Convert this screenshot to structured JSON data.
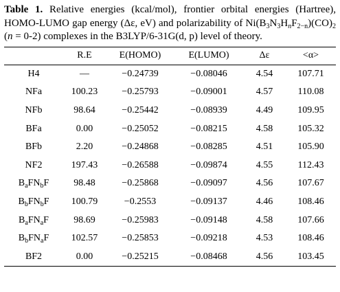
{
  "caption": {
    "label": "Table 1.",
    "text_1": " Relative energies (kcal/mol), frontier orbital energies (Hartree), HOMO-LUMO gap energy (Δε, eV) and polarizability of Ni(B",
    "sub_1": "3",
    "text_2": "N",
    "sub_2": "3",
    "text_3": "H",
    "sub_3": "n",
    "text_4": "F",
    "sub_4": "2−n",
    "text_5": ")(CO)",
    "sub_5": "2",
    "text_6": " (",
    "n_var": "n",
    "text_7": " = 0-2) complexes in the B3LYP/6-31G(d, p) level of theory."
  },
  "table": {
    "headers": [
      "",
      "R.E",
      "E(HOMO)",
      "E(LUMO)",
      "Δε",
      "<α>"
    ],
    "rows": [
      {
        "name": [
          {
            "t": "H4"
          }
        ],
        "re": "—",
        "homo": "−0.24739",
        "lumo": "−0.08046",
        "gap": "4.54",
        "alpha": "107.71"
      },
      {
        "name": [
          {
            "t": "NFa"
          }
        ],
        "re": "100.23",
        "homo": "−0.25793",
        "lumo": "−0.09001",
        "gap": "4.57",
        "alpha": "110.08"
      },
      {
        "name": [
          {
            "t": "NFb"
          }
        ],
        "re": "98.64",
        "homo": "−0.25442",
        "lumo": "−0.08939",
        "gap": "4.49",
        "alpha": "109.95"
      },
      {
        "name": [
          {
            "t": "BFa"
          }
        ],
        "re": "0.00",
        "homo": "−0.25052",
        "lumo": "−0.08215",
        "gap": "4.58",
        "alpha": "105.32"
      },
      {
        "name": [
          {
            "t": "BFb"
          }
        ],
        "re": "2.20",
        "homo": "−0.24868",
        "lumo": "−0.08285",
        "gap": "4.51",
        "alpha": "105.90"
      },
      {
        "name": [
          {
            "t": "NF2"
          }
        ],
        "re": "197.43",
        "homo": "−0.26588",
        "lumo": "−0.09874",
        "gap": "4.55",
        "alpha": "112.43"
      },
      {
        "name": [
          {
            "t": "B"
          },
          {
            "s": "a"
          },
          {
            "t": "FN"
          },
          {
            "s": "b"
          },
          {
            "t": "F"
          }
        ],
        "re": "98.48",
        "homo": "−0.25868",
        "lumo": "−0.09097",
        "gap": "4.56",
        "alpha": "107.67"
      },
      {
        "name": [
          {
            "t": "B"
          },
          {
            "s": "b"
          },
          {
            "t": "FN"
          },
          {
            "s": "b"
          },
          {
            "t": "F"
          }
        ],
        "re": "100.79",
        "homo": "−0.2553",
        "lumo": "−0.09137",
        "gap": "4.46",
        "alpha": "108.46"
      },
      {
        "name": [
          {
            "t": "B"
          },
          {
            "s": "a"
          },
          {
            "t": "FN"
          },
          {
            "s": "a"
          },
          {
            "t": "F"
          }
        ],
        "re": "98.69",
        "homo": "−0.25983",
        "lumo": "−0.09148",
        "gap": "4.58",
        "alpha": "107.66"
      },
      {
        "name": [
          {
            "t": "B"
          },
          {
            "s": "b"
          },
          {
            "t": "FN"
          },
          {
            "s": "a"
          },
          {
            "t": "F"
          }
        ],
        "re": "102.57",
        "homo": "−0.25853",
        "lumo": "−0.09218",
        "gap": "4.53",
        "alpha": "108.46"
      },
      {
        "name": [
          {
            "t": "BF2"
          }
        ],
        "re": "0.00",
        "homo": "−0.25215",
        "lumo": "−0.08468",
        "gap": "4.56",
        "alpha": "103.45"
      }
    ]
  }
}
